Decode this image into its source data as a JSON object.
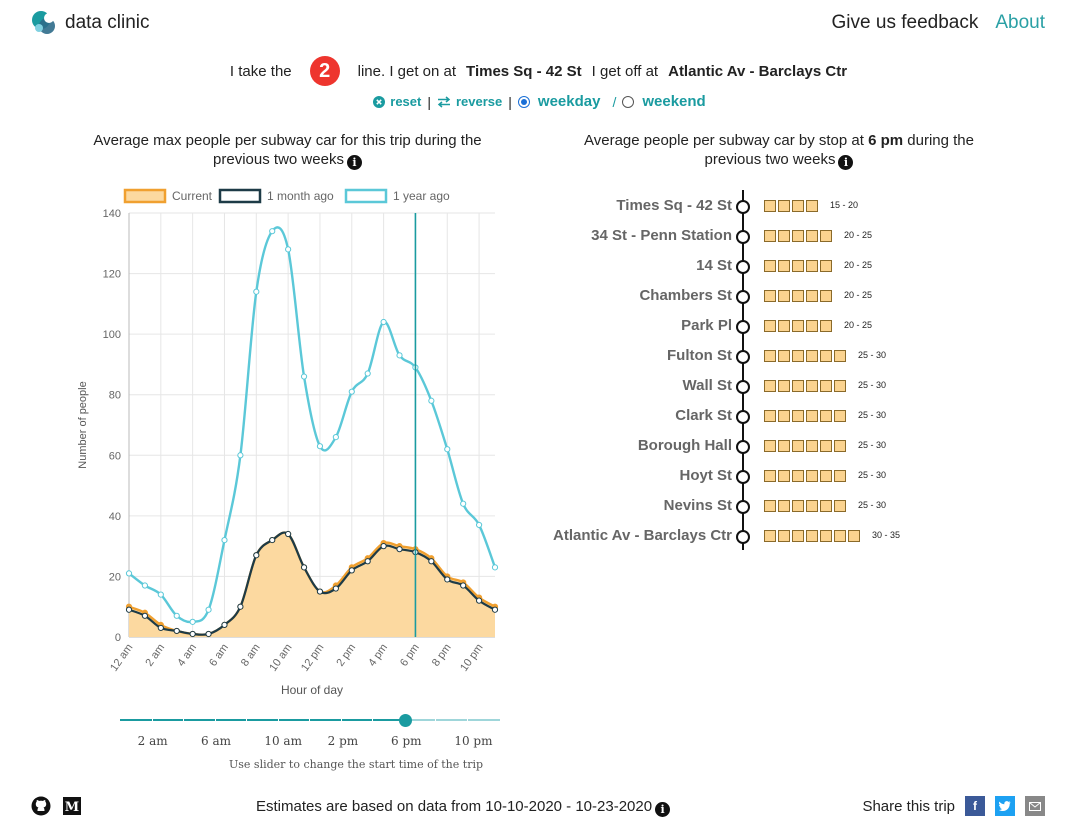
{
  "header": {
    "logo_text": "data clinic",
    "nav": {
      "feedback": "Give us feedback",
      "about": "About"
    }
  },
  "trip": {
    "prefix": "I take the",
    "line": "2",
    "line_color": "#ee352e",
    "mid": "line. I get on at",
    "from_station": "Times Sq - 42 St",
    "off_text": "I get off at",
    "to_station": "Atlantic Av - Barclays Ctr"
  },
  "controls": {
    "reset": "reset",
    "reverse": "reverse",
    "weekday": "weekday",
    "weekend": "weekend",
    "separator": "|",
    "slash": "/",
    "selected": "weekday"
  },
  "left_panel": {
    "title_line1": "Average max people per subway car for this trip during the",
    "title_line2": "previous two weeks"
  },
  "right_panel": {
    "title_pre": "Average people per subway car by stop at",
    "title_time": "6 pm",
    "title_post": "during the",
    "title_line2": "previous two weeks"
  },
  "chart_data": {
    "type": "line",
    "title": "Average max people per subway car for this trip during the previous two weeks",
    "xlabel": "Hour of day",
    "ylabel": "Number of people",
    "ylim": [
      0,
      140
    ],
    "xlim": [
      0,
      23
    ],
    "yticks": [
      0,
      20,
      40,
      60,
      80,
      100,
      120,
      140
    ],
    "xticks": [
      0,
      2,
      4,
      6,
      8,
      10,
      12,
      14,
      16,
      18,
      20,
      22
    ],
    "xtick_labels": [
      "12 am",
      "2 am",
      "4 am",
      "6 am",
      "8 am",
      "10 am",
      "12 pm",
      "2 pm",
      "4 pm",
      "6 pm",
      "8 pm",
      "10 pm"
    ],
    "legend": "top-left",
    "marker_x": 18,
    "series": [
      {
        "name": "Current",
        "color": "#f0a030",
        "fill": "#fcd9a0",
        "points": [
          [
            0,
            10
          ],
          [
            1,
            8
          ],
          [
            2,
            4
          ],
          [
            3,
            2
          ],
          [
            4,
            1
          ],
          [
            5,
            1
          ],
          [
            6,
            4
          ],
          [
            7,
            10
          ],
          [
            8,
            27
          ],
          [
            9,
            32
          ],
          [
            10,
            34
          ],
          [
            11,
            23
          ],
          [
            12,
            15
          ],
          [
            13,
            17
          ],
          [
            14,
            23
          ],
          [
            15,
            26
          ],
          [
            16,
            31
          ],
          [
            17,
            30
          ],
          [
            18,
            29
          ],
          [
            19,
            26
          ],
          [
            20,
            20
          ],
          [
            21,
            18
          ],
          [
            22,
            13
          ],
          [
            23,
            10
          ]
        ]
      },
      {
        "name": "1 month ago",
        "color": "#1d3b47",
        "points": [
          [
            0,
            9
          ],
          [
            1,
            7
          ],
          [
            2,
            3
          ],
          [
            3,
            2
          ],
          [
            4,
            1
          ],
          [
            5,
            1
          ],
          [
            6,
            4
          ],
          [
            7,
            10
          ],
          [
            8,
            27
          ],
          [
            9,
            32
          ],
          [
            10,
            34
          ],
          [
            11,
            23
          ],
          [
            12,
            15
          ],
          [
            13,
            16
          ],
          [
            14,
            22
          ],
          [
            15,
            25
          ],
          [
            16,
            30
          ],
          [
            17,
            29
          ],
          [
            18,
            28
          ],
          [
            19,
            25
          ],
          [
            20,
            19
          ],
          [
            21,
            17
          ],
          [
            22,
            12
          ],
          [
            23,
            9
          ]
        ]
      },
      {
        "name": "1 year ago",
        "color": "#5bc8d8",
        "points": [
          [
            0,
            21
          ],
          [
            1,
            17
          ],
          [
            2,
            14
          ],
          [
            3,
            7
          ],
          [
            4,
            5
          ],
          [
            5,
            9
          ],
          [
            6,
            32
          ],
          [
            7,
            60
          ],
          [
            8,
            114
          ],
          [
            9,
            134
          ],
          [
            10,
            128
          ],
          [
            11,
            86
          ],
          [
            12,
            63
          ],
          [
            13,
            66
          ],
          [
            14,
            81
          ],
          [
            15,
            87
          ],
          [
            16,
            104
          ],
          [
            17,
            93
          ],
          [
            18,
            89
          ],
          [
            19,
            78
          ],
          [
            20,
            62
          ],
          [
            21,
            44
          ],
          [
            22,
            37
          ],
          [
            23,
            23
          ]
        ]
      }
    ]
  },
  "slider": {
    "labels": [
      "2 am",
      "6 am",
      "10 am",
      "2 pm",
      "6 pm",
      "10 pm"
    ],
    "note": "Use slider to change the start time of the trip",
    "value_hour": 18,
    "max_hour": 24
  },
  "stops": [
    {
      "name": "Times Sq - 42 St",
      "boxes": 4,
      "range": "15 - 20"
    },
    {
      "name": "34 St - Penn Station",
      "boxes": 5,
      "range": "20 - 25"
    },
    {
      "name": "14 St",
      "boxes": 5,
      "range": "20 - 25"
    },
    {
      "name": "Chambers St",
      "boxes": 5,
      "range": "20 - 25"
    },
    {
      "name": "Park Pl",
      "boxes": 5,
      "range": "20 - 25"
    },
    {
      "name": "Fulton St",
      "boxes": 6,
      "range": "25 - 30"
    },
    {
      "name": "Wall St",
      "boxes": 6,
      "range": "25 - 30"
    },
    {
      "name": "Clark St",
      "boxes": 6,
      "range": "25 - 30"
    },
    {
      "name": "Borough Hall",
      "boxes": 6,
      "range": "25 - 30"
    },
    {
      "name": "Hoyt St",
      "boxes": 6,
      "range": "25 - 30"
    },
    {
      "name": "Nevins St",
      "boxes": 6,
      "range": "25 - 30"
    },
    {
      "name": "Atlantic Av - Barclays Ctr",
      "boxes": 7,
      "range": "30 - 35"
    }
  ],
  "footer": {
    "estimates": "Estimates are based on data from 10-10-2020 - 10-23-2020",
    "share": "Share this trip",
    "icons": [
      "github-icon",
      "medium-icon"
    ],
    "share_icons": [
      "facebook-icon",
      "twitter-icon",
      "email-icon"
    ]
  },
  "colors": {
    "accent": "#1a9ba0",
    "current": "#f0a030",
    "month": "#1d3b47",
    "year": "#5bc8d8",
    "box_fill": "#fbd38f"
  }
}
